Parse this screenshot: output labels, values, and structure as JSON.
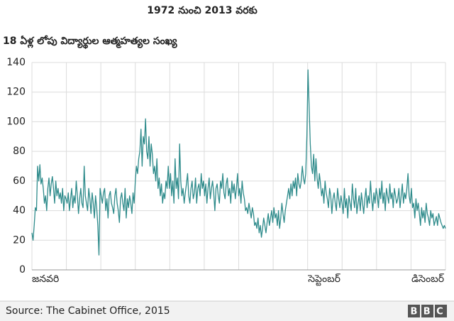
{
  "chart_data": {
    "type": "line",
    "title": "1972 నుంచి 2013 వరకు",
    "subtitle": "18 ఏళ్ల లోపు విద్యార్థుల ఆత్మహత్యల సంఖ్య",
    "source": "Source: The Cabinet Office, 2015",
    "logo": "BBC",
    "color": "#2e8b8b",
    "grid": true,
    "ylim": [
      0,
      140
    ],
    "yticks": [
      0,
      20,
      40,
      60,
      80,
      100,
      120,
      140
    ],
    "categories": [
      "జనవరి",
      null,
      null,
      null,
      null,
      null,
      null,
      null,
      null,
      null,
      null,
      null,
      null,
      null,
      null,
      null,
      null,
      null,
      null,
      null,
      null,
      null,
      null,
      null,
      null,
      null,
      null,
      null,
      null,
      null,
      null,
      null,
      null,
      null,
      null,
      null,
      null,
      null,
      null,
      null,
      null,
      null,
      null,
      null,
      null,
      null,
      null,
      null,
      null,
      null,
      null,
      null,
      null,
      null,
      null,
      null,
      null,
      null,
      null,
      null,
      null,
      null,
      null,
      null,
      null,
      null,
      null,
      null,
      null,
      null,
      null,
      null,
      null,
      null,
      null,
      null,
      null,
      null,
      null,
      null,
      null,
      null,
      null,
      null,
      null,
      null,
      null,
      null,
      null,
      null,
      null,
      null,
      null,
      null,
      null,
      null,
      null,
      null,
      null,
      null,
      null,
      null,
      null,
      null,
      null,
      null,
      null,
      null,
      null,
      null,
      null,
      null,
      null,
      null,
      null,
      null,
      null,
      null,
      null,
      null,
      null,
      null,
      null,
      null,
      null,
      null,
      null,
      null,
      null,
      null,
      null,
      null,
      null,
      null,
      null,
      null,
      null,
      null,
      null,
      null,
      null,
      null,
      null,
      null,
      null,
      null,
      null,
      null,
      null,
      null,
      null,
      null,
      null,
      null,
      null,
      null,
      null,
      null,
      null,
      null,
      null,
      null,
      null,
      null,
      null,
      null,
      null,
      null,
      null,
      null,
      null,
      null,
      null,
      null,
      null,
      null,
      null,
      null,
      null,
      null,
      null,
      null,
      null,
      null,
      null,
      null,
      null,
      null,
      null,
      null,
      null,
      null,
      null,
      null,
      null,
      null,
      null,
      null,
      null,
      null,
      null,
      null,
      null,
      null,
      null,
      null,
      null,
      null,
      null,
      null,
      null,
      null,
      null,
      null,
      null,
      null,
      null,
      null,
      null,
      null,
      null,
      null,
      null,
      null,
      null,
      null,
      null,
      null,
      null,
      null,
      null,
      null,
      null,
      null,
      null,
      null,
      null,
      null,
      null,
      null,
      null,
      null,
      null,
      "సెప్టెంబర్",
      null,
      null,
      null,
      null,
      null,
      null,
      null,
      null,
      null,
      null,
      null,
      null,
      null,
      null,
      null,
      null,
      null,
      null,
      null,
      null,
      null,
      null,
      null,
      null,
      null,
      null,
      null,
      null,
      null,
      null,
      null,
      null,
      null,
      null,
      null,
      null,
      null,
      null,
      null,
      null,
      null,
      null,
      null,
      null,
      null,
      null,
      null,
      null,
      null,
      null,
      null,
      null,
      null,
      null,
      null,
      null,
      null,
      null,
      null,
      null,
      null,
      null,
      null,
      null,
      null,
      null,
      null,
      null,
      null,
      null,
      null,
      null,
      null,
      null,
      null,
      null,
      null,
      null,
      null,
      null,
      null,
      null,
      null,
      null,
      null,
      null,
      null,
      null,
      null,
      null,
      "డిసెంబర్",
      null,
      null,
      null,
      null,
      null,
      null,
      null,
      null,
      null,
      null,
      null,
      null,
      null,
      null,
      null,
      null,
      null,
      null,
      null,
      null,
      null,
      null,
      null,
      null,
      null,
      null,
      null,
      null,
      null,
      null
    ],
    "values": [
      25,
      20,
      30,
      42,
      40,
      70,
      60,
      71,
      58,
      62,
      55,
      45,
      50,
      40,
      55,
      62,
      50,
      58,
      63,
      55,
      45,
      60,
      50,
      55,
      48,
      52,
      45,
      55,
      40,
      50,
      48,
      45,
      52,
      40,
      48,
      55,
      42,
      50,
      45,
      60,
      50,
      38,
      48,
      55,
      45,
      42,
      70,
      50,
      45,
      40,
      55,
      48,
      38,
      52,
      45,
      35,
      50,
      42,
      30,
      10,
      55,
      50,
      45,
      52,
      55,
      40,
      48,
      35,
      50,
      53,
      45,
      42,
      38,
      50,
      55,
      45,
      40,
      32,
      48,
      52,
      45,
      40,
      55,
      35,
      48,
      42,
      50,
      45,
      38,
      52,
      45,
      60,
      70,
      65,
      75,
      80,
      95,
      70,
      90,
      85,
      102,
      80,
      75,
      90,
      70,
      85,
      78,
      65,
      70,
      60,
      75,
      55,
      62,
      50,
      58,
      45,
      52,
      48,
      60,
      55,
      70,
      55,
      65,
      50,
      60,
      45,
      75,
      55,
      62,
      48,
      85,
      60,
      50,
      55,
      45,
      52,
      58,
      65,
      50,
      45,
      55,
      60,
      48,
      52,
      62,
      45,
      55,
      58,
      50,
      65,
      55,
      60,
      50,
      58,
      45,
      55,
      62,
      48,
      55,
      60,
      52,
      40,
      55,
      58,
      50,
      45,
      60,
      55,
      65,
      52,
      48,
      58,
      62,
      50,
      55,
      45,
      60,
      52,
      58,
      48,
      55,
      65,
      50,
      55,
      45,
      60,
      52,
      48,
      40,
      42,
      38,
      45,
      40,
      35,
      42,
      38,
      30,
      32,
      28,
      35,
      25,
      30,
      22,
      28,
      35,
      30,
      25,
      32,
      38,
      30,
      35,
      40,
      32,
      42,
      35,
      38,
      30,
      40,
      28,
      35,
      45,
      38,
      32,
      40,
      45,
      50,
      55,
      48,
      58,
      50,
      60,
      55,
      62,
      50,
      65,
      58,
      55,
      60,
      70,
      62,
      58,
      65,
      90,
      135,
      110,
      85,
      70,
      65,
      78,
      60,
      75,
      62,
      55,
      65,
      58,
      50,
      55,
      45,
      60,
      52,
      48,
      42,
      55,
      50,
      38,
      48,
      52,
      45,
      40,
      55,
      48,
      42,
      50,
      45,
      38,
      55,
      42,
      48,
      35,
      50,
      45,
      40,
      58,
      48,
      42,
      55,
      38,
      45,
      50,
      40,
      52,
      45,
      38,
      48,
      55,
      42,
      50,
      45,
      60,
      48,
      40,
      52,
      45,
      55,
      50,
      42,
      55,
      48,
      60,
      45,
      52,
      40,
      55,
      50,
      45,
      58,
      48,
      52,
      42,
      55,
      50,
      45,
      48,
      55,
      42,
      50,
      58,
      45,
      52,
      48,
      55,
      65,
      50,
      45,
      55,
      42,
      45,
      35,
      48,
      40,
      45,
      38,
      30,
      42,
      35,
      40,
      32,
      45,
      38,
      35,
      30,
      40,
      35,
      38,
      30,
      33,
      36,
      30,
      38,
      35,
      32,
      30,
      28,
      30,
      28
    ]
  }
}
